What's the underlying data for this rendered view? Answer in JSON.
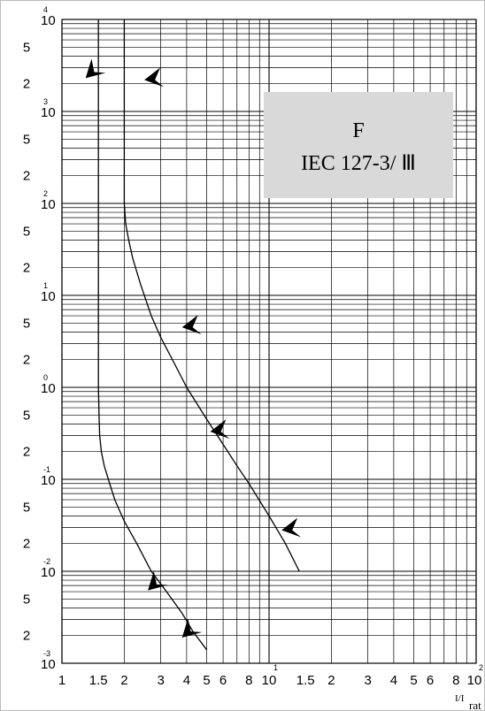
{
  "chart_data": {
    "type": "line",
    "title": "F",
    "subtitle": "IEC 127-3/ Ⅲ",
    "xlabel_main": "I/I",
    "xlabel_sub": "rat",
    "ylabel": "",
    "x_scale": "log",
    "y_scale": "log",
    "xlim": [
      1,
      100
    ],
    "ylim": [
      0.001,
      10000
    ],
    "grid": true,
    "legend": "none",
    "x_tick_labels": [
      {
        "v": 1,
        "t": "1"
      },
      {
        "v": 1.5,
        "t": "1.5"
      },
      {
        "v": 2,
        "t": "2"
      },
      {
        "v": 3,
        "t": "3"
      },
      {
        "v": 4,
        "t": "4"
      },
      {
        "v": 5,
        "t": "5"
      },
      {
        "v": 6,
        "t": "6"
      },
      {
        "v": 8,
        "t": "8"
      },
      {
        "v": 10,
        "t": "10",
        "e": "1"
      },
      {
        "v": 15,
        "t": "1.5"
      },
      {
        "v": 20,
        "t": "2"
      },
      {
        "v": 30,
        "t": "3"
      },
      {
        "v": 40,
        "t": "4"
      },
      {
        "v": 50,
        "t": "5"
      },
      {
        "v": 60,
        "t": "6"
      },
      {
        "v": 80,
        "t": "8"
      },
      {
        "v": 100,
        "t": "10",
        "e": "2"
      }
    ],
    "y_tick_labels": [
      {
        "v": 10000,
        "t": "10",
        "e": "4"
      },
      {
        "v": 5000,
        "t": "5"
      },
      {
        "v": 2000,
        "t": "2"
      },
      {
        "v": 1000,
        "t": "10",
        "e": "3"
      },
      {
        "v": 500,
        "t": "5"
      },
      {
        "v": 200,
        "t": "2"
      },
      {
        "v": 100,
        "t": "10",
        "e": "2"
      },
      {
        "v": 50,
        "t": "5"
      },
      {
        "v": 20,
        "t": "2"
      },
      {
        "v": 10,
        "t": "10",
        "e": "1"
      },
      {
        "v": 5,
        "t": "5"
      },
      {
        "v": 2,
        "t": "2"
      },
      {
        "v": 1,
        "t": "10",
        "e": "0"
      },
      {
        "v": 0.5,
        "t": "5"
      },
      {
        "v": 0.2,
        "t": "2"
      },
      {
        "v": 0.1,
        "t": "10",
        "e": "-1"
      },
      {
        "v": 0.05,
        "t": "5"
      },
      {
        "v": 0.02,
        "t": "2"
      },
      {
        "v": 0.01,
        "t": "10",
        "e": "-2"
      },
      {
        "v": 0.005,
        "t": "5"
      },
      {
        "v": 0.002,
        "t": "2"
      },
      {
        "v": 0.001,
        "t": "10",
        "e": "-3"
      }
    ],
    "series": [
      {
        "color": "#000000",
        "x": [
          1.5,
          1.5,
          1.5,
          1.51,
          1.52,
          1.55,
          1.6,
          1.7,
          1.8,
          2.0,
          2.3,
          2.7,
          3.2,
          3.8,
          4.3,
          5.0
        ],
        "y": [
          10000,
          100,
          1,
          0.5,
          0.3,
          0.2,
          0.14,
          0.09,
          0.06,
          0.035,
          0.02,
          0.01,
          0.006,
          0.0035,
          0.0022,
          0.0014
        ]
      },
      {
        "color": "#000000",
        "x": [
          2.0,
          2.0,
          2.0,
          2.03,
          2.1,
          2.2,
          2.4,
          2.7,
          3.0,
          3.5,
          4.0,
          5.0,
          6.0,
          7.0,
          8.0,
          10.0,
          12.0,
          14.0
        ],
        "y": [
          10000,
          1000,
          100,
          60,
          40,
          25,
          13,
          6,
          3.5,
          1.8,
          1.0,
          0.45,
          0.24,
          0.14,
          0.09,
          0.04,
          0.02,
          0.01
        ]
      }
    ],
    "markers": [
      {
        "x": 1.3,
        "y": 2300,
        "dir": "down-left"
      },
      {
        "x": 2.5,
        "y": 2200,
        "dir": "left"
      },
      {
        "x": 3.8,
        "y": 4.5,
        "dir": "left"
      },
      {
        "x": 5.2,
        "y": 0.33,
        "dir": "left"
      },
      {
        "x": 11.5,
        "y": 0.028,
        "dir": "left"
      },
      {
        "x": 2.6,
        "y": 0.0062,
        "dir": "down-left"
      },
      {
        "x": 3.8,
        "y": 0.0019,
        "dir": "down-left"
      }
    ]
  }
}
